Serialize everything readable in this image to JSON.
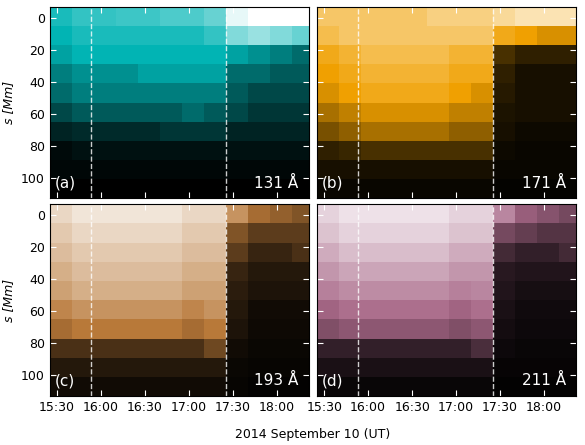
{
  "xlabel": "2014 September 10 (UT)",
  "chart_data": [
    {
      "type": "heatmap",
      "panel": "(a)",
      "wavelength": "131 Å",
      "ylabel": "s [Mm]",
      "color": "#00b4b4",
      "tick_labels": "y",
      "line_style": "dashed",
      "vlines": [
        953,
        1045
      ],
      "xlim": [
        925,
        1102
      ],
      "ylim": [
        113,
        -7
      ],
      "xticks": [
        {
          "value": 930,
          "label": "15:30"
        },
        {
          "value": 960,
          "label": "16:00"
        },
        {
          "value": 990,
          "label": "16:30"
        },
        {
          "value": 1020,
          "label": "17:00"
        },
        {
          "value": 1050,
          "label": "17:30"
        },
        {
          "value": 1080,
          "label": "18:00"
        }
      ],
      "yticks": [
        0,
        20,
        40,
        60,
        80,
        100
      ],
      "x_bins": [
        925,
        940,
        955,
        970,
        985,
        1000,
        1015,
        1030,
        1045,
        1060,
        1075,
        1090,
        1105
      ],
      "y_bins": [
        -7,
        5,
        17,
        29,
        41,
        53,
        65,
        77,
        89,
        101,
        113
      ],
      "zlim": [
        0,
        1
      ],
      "cells": [
        [
          0.55,
          0.6,
          0.6,
          0.62,
          0.62,
          0.65,
          0.65,
          0.7,
          0.95,
          1,
          1,
          1
        ],
        [
          0.5,
          0.55,
          0.55,
          0.55,
          0.55,
          0.55,
          0.55,
          0.6,
          0.75,
          0.8,
          0.75,
          0.7
        ],
        [
          0.45,
          0.5,
          0.5,
          0.5,
          0.5,
          0.5,
          0.5,
          0.5,
          0.45,
          0.4,
          0.35,
          0.3
        ],
        [
          0.35,
          0.4,
          0.4,
          0.4,
          0.45,
          0.45,
          0.45,
          0.45,
          0.3,
          0.3,
          0.25,
          0.25
        ],
        [
          0.3,
          0.35,
          0.35,
          0.35,
          0.35,
          0.35,
          0.35,
          0.35,
          0.25,
          0.2,
          0.2,
          0.2
        ],
        [
          0.2,
          0.25,
          0.25,
          0.25,
          0.25,
          0.25,
          0.3,
          0.25,
          0.2,
          0.15,
          0.15,
          0.15
        ],
        [
          0.1,
          0.12,
          0.12,
          0.12,
          0.12,
          0.15,
          0.15,
          0.15,
          0.1,
          0.1,
          0.1,
          0.1
        ],
        [
          0.03,
          0.05,
          0.05,
          0.05,
          0.05,
          0.05,
          0.05,
          0.05,
          0.05,
          0.05,
          0.05,
          0.05
        ],
        [
          0.02,
          0.02,
          0.02,
          0.02,
          0.02,
          0.02,
          0.02,
          0.02,
          0.02,
          0.02,
          0.02,
          0.02
        ],
        [
          0,
          0,
          0,
          0,
          0,
          0,
          0,
          0,
          0,
          0,
          0,
          0
        ]
      ]
    },
    {
      "type": "heatmap",
      "panel": "(b)",
      "wavelength": "171 Å",
      "color": "#f0a000",
      "tick_labels": false,
      "line_style": "dashed",
      "vlines": [
        953,
        1045
      ],
      "xlim": [
        925,
        1102
      ],
      "ylim": [
        113,
        -7
      ],
      "xticks": [
        {
          "value": 930,
          "label": "15:30"
        },
        {
          "value": 960,
          "label": "16:00"
        },
        {
          "value": 990,
          "label": "16:30"
        },
        {
          "value": 1020,
          "label": "17:00"
        },
        {
          "value": 1050,
          "label": "17:30"
        },
        {
          "value": 1080,
          "label": "18:00"
        }
      ],
      "yticks": [
        0,
        20,
        40,
        60,
        80,
        100
      ],
      "x_bins": [
        925,
        940,
        955,
        970,
        985,
        1000,
        1015,
        1030,
        1045,
        1060,
        1075,
        1090,
        1105
      ],
      "y_bins": [
        -7,
        5,
        17,
        29,
        41,
        53,
        65,
        77,
        89,
        101,
        113
      ],
      "zlim": [
        0,
        1
      ],
      "cells": [
        [
          0.7,
          0.7,
          0.7,
          0.7,
          0.7,
          0.75,
          0.75,
          0.75,
          0.8,
          0.85,
          0.85,
          0.85
        ],
        [
          0.65,
          0.7,
          0.7,
          0.7,
          0.7,
          0.7,
          0.7,
          0.7,
          0.55,
          0.5,
          0.45,
          0.45
        ],
        [
          0.55,
          0.6,
          0.65,
          0.65,
          0.65,
          0.65,
          0.6,
          0.6,
          0.15,
          0.1,
          0.1,
          0.1
        ],
        [
          0.5,
          0.55,
          0.6,
          0.6,
          0.6,
          0.6,
          0.55,
          0.55,
          0.1,
          0.05,
          0.05,
          0.05
        ],
        [
          0.45,
          0.5,
          0.55,
          0.55,
          0.55,
          0.55,
          0.5,
          0.45,
          0.08,
          0.05,
          0.05,
          0.05
        ],
        [
          0.35,
          0.4,
          0.45,
          0.45,
          0.45,
          0.45,
          0.4,
          0.4,
          0.06,
          0.05,
          0.05,
          0.05
        ],
        [
          0.25,
          0.3,
          0.35,
          0.35,
          0.35,
          0.35,
          0.3,
          0.3,
          0.05,
          0.03,
          0.03,
          0.03
        ],
        [
          0.1,
          0.12,
          0.15,
          0.15,
          0.15,
          0.15,
          0.15,
          0.15,
          0.03,
          0.02,
          0.02,
          0.02
        ],
        [
          0.05,
          0.05,
          0.05,
          0.05,
          0.05,
          0.05,
          0.05,
          0.05,
          0.02,
          0.02,
          0.02,
          0.02
        ],
        [
          0.02,
          0.02,
          0.02,
          0.02,
          0.02,
          0.02,
          0.02,
          0.02,
          0.01,
          0.01,
          0.01,
          0.01
        ]
      ]
    },
    {
      "type": "heatmap",
      "panel": "(c)",
      "wavelength": "193 Å",
      "ylabel": "s [Mm]",
      "color": "#b87838",
      "tick_labels": true,
      "line_style": "dashed",
      "vlines": [
        953,
        1045
      ],
      "xlim": [
        925,
        1102
      ],
      "ylim": [
        113,
        -7
      ],
      "xticks": [
        {
          "value": 930,
          "label": "15:30"
        },
        {
          "value": 960,
          "label": "16:00"
        },
        {
          "value": 990,
          "label": "16:30"
        },
        {
          "value": 1020,
          "label": "17:00"
        },
        {
          "value": 1050,
          "label": "17:30"
        },
        {
          "value": 1080,
          "label": "18:00"
        }
      ],
      "yticks": [
        0,
        20,
        40,
        60,
        80,
        100
      ],
      "x_bins": [
        925,
        940,
        955,
        970,
        985,
        1000,
        1015,
        1030,
        1045,
        1060,
        1075,
        1090,
        1105
      ],
      "y_bins": [
        -7,
        5,
        17,
        29,
        41,
        53,
        65,
        77,
        89,
        101,
        113
      ],
      "zlim": [
        0,
        1
      ],
      "cells": [
        [
          0.85,
          0.9,
          0.9,
          0.9,
          0.9,
          0.9,
          0.85,
          0.85,
          0.6,
          0.45,
          0.4,
          0.35
        ],
        [
          0.8,
          0.85,
          0.85,
          0.85,
          0.85,
          0.85,
          0.8,
          0.8,
          0.35,
          0.25,
          0.25,
          0.25
        ],
        [
          0.75,
          0.8,
          0.8,
          0.8,
          0.8,
          0.8,
          0.75,
          0.75,
          0.25,
          0.15,
          0.15,
          0.2
        ],
        [
          0.7,
          0.75,
          0.75,
          0.75,
          0.75,
          0.75,
          0.7,
          0.7,
          0.15,
          0.1,
          0.1,
          0.1
        ],
        [
          0.65,
          0.7,
          0.7,
          0.7,
          0.7,
          0.7,
          0.65,
          0.65,
          0.12,
          0.08,
          0.08,
          0.08
        ],
        [
          0.55,
          0.6,
          0.6,
          0.6,
          0.6,
          0.6,
          0.55,
          0.6,
          0.1,
          0.05,
          0.05,
          0.05
        ],
        [
          0.45,
          0.5,
          0.5,
          0.5,
          0.5,
          0.5,
          0.45,
          0.5,
          0.08,
          0.04,
          0.04,
          0.04
        ],
        [
          0.2,
          0.2,
          0.2,
          0.2,
          0.2,
          0.2,
          0.2,
          0.3,
          0.05,
          0.03,
          0.03,
          0.03
        ],
        [
          0.1,
          0.1,
          0.1,
          0.1,
          0.1,
          0.1,
          0.1,
          0.1,
          0.03,
          0.02,
          0.02,
          0.02
        ],
        [
          0.05,
          0.05,
          0.05,
          0.05,
          0.05,
          0.05,
          0.05,
          0.05,
          0.02,
          0.01,
          0.01,
          0.01
        ]
      ]
    },
    {
      "type": "heatmap",
      "panel": "(d)",
      "wavelength": "211 Å",
      "color": "#a86888",
      "tick_labels": "x",
      "line_style": "dashed",
      "vlines": [
        953,
        1045
      ],
      "xlim": [
        925,
        1102
      ],
      "ylim": [
        113,
        -7
      ],
      "xticks": [
        {
          "value": 930,
          "label": "15:30"
        },
        {
          "value": 960,
          "label": "16:00"
        },
        {
          "value": 990,
          "label": "16:30"
        },
        {
          "value": 1020,
          "label": "17:00"
        },
        {
          "value": 1050,
          "label": "17:30"
        },
        {
          "value": 1080,
          "label": "18:00"
        }
      ],
      "yticks": [
        0,
        20,
        40,
        60,
        80,
        100
      ],
      "x_bins": [
        925,
        940,
        955,
        970,
        985,
        1000,
        1015,
        1030,
        1045,
        1060,
        1075,
        1090,
        1105
      ],
      "y_bins": [
        -7,
        5,
        17,
        29,
        41,
        53,
        65,
        77,
        89,
        101,
        113
      ],
      "zlim": [
        0,
        1
      ],
      "cells": [
        [
          0.85,
          0.9,
          0.9,
          0.9,
          0.9,
          0.9,
          0.85,
          0.85,
          0.6,
          0.45,
          0.4,
          0.35
        ],
        [
          0.8,
          0.85,
          0.85,
          0.85,
          0.85,
          0.85,
          0.8,
          0.8,
          0.35,
          0.3,
          0.25,
          0.25
        ],
        [
          0.72,
          0.78,
          0.78,
          0.78,
          0.78,
          0.78,
          0.72,
          0.72,
          0.2,
          0.15,
          0.15,
          0.2
        ],
        [
          0.65,
          0.7,
          0.7,
          0.7,
          0.7,
          0.7,
          0.65,
          0.65,
          0.12,
          0.1,
          0.1,
          0.1
        ],
        [
          0.58,
          0.62,
          0.62,
          0.62,
          0.62,
          0.62,
          0.58,
          0.6,
          0.1,
          0.07,
          0.07,
          0.07
        ],
        [
          0.48,
          0.52,
          0.52,
          0.52,
          0.52,
          0.52,
          0.48,
          0.52,
          0.08,
          0.05,
          0.05,
          0.05
        ],
        [
          0.38,
          0.42,
          0.42,
          0.42,
          0.42,
          0.42,
          0.38,
          0.42,
          0.06,
          0.04,
          0.04,
          0.04
        ],
        [
          0.15,
          0.15,
          0.15,
          0.15,
          0.15,
          0.15,
          0.15,
          0.22,
          0.04,
          0.03,
          0.03,
          0.03
        ],
        [
          0.08,
          0.08,
          0.08,
          0.08,
          0.08,
          0.08,
          0.08,
          0.08,
          0.02,
          0.02,
          0.02,
          0.02
        ],
        [
          0.03,
          0.03,
          0.03,
          0.03,
          0.03,
          0.03,
          0.03,
          0.03,
          0.01,
          0.01,
          0.01,
          0.01
        ]
      ]
    }
  ]
}
